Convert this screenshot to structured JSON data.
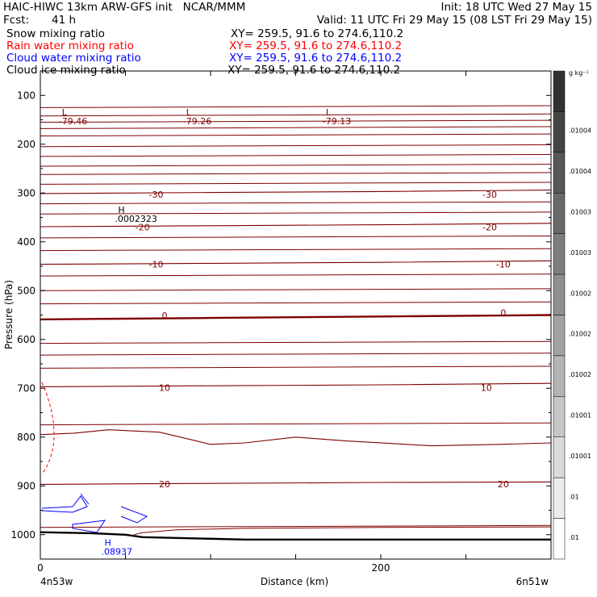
{
  "header": {
    "title_left": "HAIC-HIWC 13km ARW-GFS init   NCAR/MMM",
    "init": "Init: 18 UTC Wed 27 May 15",
    "fcst_label": "Fcst:",
    "fcst_value": "41 h",
    "valid": "Valid: 11 UTC Fri 29 May 15 (08 LST Fri 29 May 15)"
  },
  "legend": [
    {
      "name": "Snow mixing ratio",
      "xy": "XY= 259.5, 91.6 to 274.6,110.2",
      "color": "#000000"
    },
    {
      "name": "Rain water mixing ratio",
      "xy": "XY= 259.5, 91.6 to 274.6,110.2",
      "color": "#ff0000"
    },
    {
      "name": "Cloud water mixing ratio",
      "xy": "XY= 259.5, 91.6 to 274.6,110.2",
      "color": "#0000ff"
    },
    {
      "name": "Cloud ice mixing ratio",
      "xy": "XY= 259.5, 91.6 to 274.6,110.2",
      "color": "#000000"
    }
  ],
  "chart_data": {
    "type": "line",
    "xlabel": "Distance (km)",
    "ylabel": "Pressure (hPa)",
    "xlim": [
      0,
      300
    ],
    "ylim": [
      1050,
      50
    ],
    "x_ticks": [
      0,
      200
    ],
    "y_ticks": [
      100,
      200,
      300,
      400,
      500,
      600,
      700,
      800,
      900,
      1000
    ],
    "corner_labels": {
      "left": "4n53w",
      "right": "6n51w"
    },
    "temperature_color": "#800000",
    "isotherms": [
      {
        "label": "-30",
        "points": [
          [
            0,
            301
          ],
          [
            100,
            299
          ],
          [
            200,
            297
          ],
          [
            300,
            294
          ]
        ]
      },
      {
        "label": "-20",
        "points": [
          [
            0,
            369
          ],
          [
            100,
            367
          ],
          [
            200,
            365
          ],
          [
            300,
            362
          ]
        ]
      },
      {
        "label": "-10",
        "points": [
          [
            0,
            446
          ],
          [
            100,
            444
          ],
          [
            200,
            442
          ],
          [
            300,
            439
          ]
        ]
      },
      {
        "label": "0",
        "points": [
          [
            0,
            559
          ],
          [
            100,
            556
          ],
          [
            200,
            553
          ],
          [
            300,
            550
          ]
        ],
        "bold": true
      },
      {
        "label": "10",
        "points": [
          [
            0,
            697
          ],
          [
            100,
            695
          ],
          [
            200,
            693
          ],
          [
            300,
            690
          ]
        ]
      },
      {
        "label": "20",
        "points": [
          [
            0,
            897
          ],
          [
            100,
            895
          ],
          [
            200,
            893
          ],
          [
            300,
            892
          ]
        ]
      }
    ],
    "isotherm_labels": [
      {
        "text": "-30",
        "x": 68,
        "y": 303
      },
      {
        "text": "-30",
        "x": 264,
        "y": 303
      },
      {
        "text": "-20",
        "x": 60,
        "y": 370
      },
      {
        "text": "-20",
        "x": 264,
        "y": 370
      },
      {
        "text": "-10",
        "x": 68,
        "y": 446
      },
      {
        "text": "-10",
        "x": 272,
        "y": 446
      },
      {
        "text": "0",
        "x": 73,
        "y": 551
      },
      {
        "text": "0",
        "x": 272,
        "y": 545
      },
      {
        "text": "10",
        "x": 73,
        "y": 699
      },
      {
        "text": "10",
        "x": 262,
        "y": 699
      },
      {
        "text": "20",
        "x": 73,
        "y": 896
      },
      {
        "text": "20",
        "x": 272,
        "y": 896
      }
    ],
    "extrema": [
      {
        "letter": "L",
        "value": "-79.46",
        "x": 7,
        "y": 88
      },
      {
        "letter": "L",
        "value": "-79.26",
        "x": 80,
        "y": 88
      },
      {
        "letter": "L",
        "value": "-79.13",
        "x": 162,
        "y": 88
      },
      {
        "letter": "H",
        "value": ".0002323",
        "x": 40,
        "y": 288
      },
      {
        "letter": "H",
        "value": ".08937",
        "x": 32,
        "y": 970,
        "color": "#0000ff"
      }
    ],
    "colorbar": {
      "unit": "g kg⁻¹",
      "labels": [
        ".01004",
        ".01004",
        ".01003",
        ".01003",
        ".01002",
        ".01002",
        ".01002",
        ".01001",
        ".01001",
        ".01",
        ".01"
      ]
    }
  }
}
